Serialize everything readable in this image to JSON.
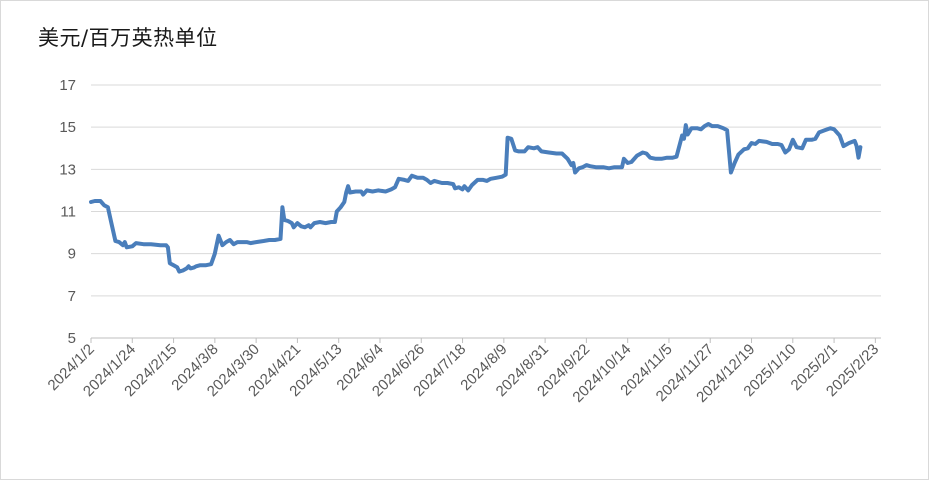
{
  "chart_data": {
    "type": "line",
    "unit_label": "美元/百万英热单位",
    "ylim": [
      5,
      17
    ],
    "y_ticks": [
      "5",
      "7",
      "9",
      "11",
      "13",
      "15",
      "17"
    ],
    "x_ticks": [
      "2024/1/2",
      "2024/1/24",
      "2024/2/15",
      "2024/3/8",
      "2024/3/30",
      "2024/4/21",
      "2024/5/13",
      "2024/6/4",
      "2024/6/26",
      "2024/7/18",
      "2024/8/9",
      "2024/8/31",
      "2024/9/22",
      "2024/10/14",
      "2024/11/5",
      "2024/11/27",
      "2024/12/19",
      "2025/1/10",
      "2025/2/1",
      "2025/2/23"
    ],
    "x_range": [
      "2024-01-02",
      "2025-02-26"
    ],
    "grid": true,
    "line_color": "#4a7ebb",
    "series": [
      {
        "points": [
          [
            "2024-01-02",
            11.45
          ],
          [
            "2024-01-04",
            11.5
          ],
          [
            "2024-01-07",
            11.5
          ],
          [
            "2024-01-09",
            11.3
          ],
          [
            "2024-01-11",
            11.2
          ],
          [
            "2024-01-13",
            10.4
          ],
          [
            "2024-01-15",
            9.6
          ],
          [
            "2024-01-17",
            9.55
          ],
          [
            "2024-01-19",
            9.4
          ],
          [
            "2024-01-20",
            9.55
          ],
          [
            "2024-01-21",
            9.3
          ],
          [
            "2024-01-24",
            9.35
          ],
          [
            "2024-01-26",
            9.5
          ],
          [
            "2024-01-30",
            9.45
          ],
          [
            "2024-02-03",
            9.45
          ],
          [
            "2024-02-08",
            9.4
          ],
          [
            "2024-02-11",
            9.4
          ],
          [
            "2024-02-12",
            9.3
          ],
          [
            "2024-02-13",
            8.55
          ],
          [
            "2024-02-15",
            8.45
          ],
          [
            "2024-02-17",
            8.35
          ],
          [
            "2024-02-18",
            8.15
          ],
          [
            "2024-02-20",
            8.2
          ],
          [
            "2024-02-22",
            8.3
          ],
          [
            "2024-02-23",
            8.4
          ],
          [
            "2024-02-24",
            8.3
          ],
          [
            "2024-02-26",
            8.35
          ],
          [
            "2024-02-27",
            8.4
          ],
          [
            "2024-02-29",
            8.45
          ],
          [
            "2024-03-03",
            8.45
          ],
          [
            "2024-03-06",
            8.5
          ],
          [
            "2024-03-08",
            9.0
          ],
          [
            "2024-03-10",
            9.85
          ],
          [
            "2024-03-12",
            9.4
          ],
          [
            "2024-03-14",
            9.55
          ],
          [
            "2024-03-16",
            9.65
          ],
          [
            "2024-03-18",
            9.45
          ],
          [
            "2024-03-20",
            9.55
          ],
          [
            "2024-03-25",
            9.55
          ],
          [
            "2024-03-27",
            9.5
          ],
          [
            "2024-03-30",
            9.55
          ],
          [
            "2024-04-03",
            9.6
          ],
          [
            "2024-04-06",
            9.65
          ],
          [
            "2024-04-09",
            9.65
          ],
          [
            "2024-04-12",
            9.7
          ],
          [
            "2024-04-13",
            11.2
          ],
          [
            "2024-04-14",
            10.6
          ],
          [
            "2024-04-16",
            10.55
          ],
          [
            "2024-04-18",
            10.45
          ],
          [
            "2024-04-19",
            10.25
          ],
          [
            "2024-04-21",
            10.45
          ],
          [
            "2024-04-23",
            10.3
          ],
          [
            "2024-04-25",
            10.25
          ],
          [
            "2024-04-27",
            10.35
          ],
          [
            "2024-04-28",
            10.25
          ],
          [
            "2024-04-30",
            10.45
          ],
          [
            "2024-05-03",
            10.5
          ],
          [
            "2024-05-06",
            10.45
          ],
          [
            "2024-05-09",
            10.5
          ],
          [
            "2024-05-11",
            10.5
          ],
          [
            "2024-05-12",
            11.0
          ],
          [
            "2024-05-14",
            11.2
          ],
          [
            "2024-05-16",
            11.45
          ],
          [
            "2024-05-17",
            11.9
          ],
          [
            "2024-05-18",
            12.2
          ],
          [
            "2024-05-19",
            11.9
          ],
          [
            "2024-05-22",
            11.95
          ],
          [
            "2024-05-25",
            11.95
          ],
          [
            "2024-05-26",
            11.8
          ],
          [
            "2024-05-28",
            12.0
          ],
          [
            "2024-05-31",
            11.95
          ],
          [
            "2024-06-03",
            12.0
          ],
          [
            "2024-06-07",
            11.95
          ],
          [
            "2024-06-10",
            12.05
          ],
          [
            "2024-06-12",
            12.15
          ],
          [
            "2024-06-14",
            12.55
          ],
          [
            "2024-06-17",
            12.5
          ],
          [
            "2024-06-19",
            12.45
          ],
          [
            "2024-06-21",
            12.7
          ],
          [
            "2024-06-24",
            12.6
          ],
          [
            "2024-06-27",
            12.6
          ],
          [
            "2024-06-29",
            12.5
          ],
          [
            "2024-07-01",
            12.35
          ],
          [
            "2024-07-03",
            12.45
          ],
          [
            "2024-07-07",
            12.35
          ],
          [
            "2024-07-10",
            12.35
          ],
          [
            "2024-07-13",
            12.3
          ],
          [
            "2024-07-14",
            12.1
          ],
          [
            "2024-07-16",
            12.15
          ],
          [
            "2024-07-18",
            12.05
          ],
          [
            "2024-07-19",
            12.2
          ],
          [
            "2024-07-21",
            12.0
          ],
          [
            "2024-07-23",
            12.25
          ],
          [
            "2024-07-26",
            12.5
          ],
          [
            "2024-07-29",
            12.5
          ],
          [
            "2024-07-31",
            12.45
          ],
          [
            "2024-08-02",
            12.55
          ],
          [
            "2024-08-05",
            12.6
          ],
          [
            "2024-08-08",
            12.65
          ],
          [
            "2024-08-10",
            12.75
          ],
          [
            "2024-08-11",
            14.5
          ],
          [
            "2024-08-13",
            14.45
          ],
          [
            "2024-08-15",
            13.9
          ],
          [
            "2024-08-17",
            13.85
          ],
          [
            "2024-08-20",
            13.85
          ],
          [
            "2024-08-22",
            14.05
          ],
          [
            "2024-08-25",
            14.0
          ],
          [
            "2024-08-27",
            14.05
          ],
          [
            "2024-08-29",
            13.85
          ],
          [
            "2024-09-02",
            13.8
          ],
          [
            "2024-09-06",
            13.75
          ],
          [
            "2024-09-09",
            13.75
          ],
          [
            "2024-09-12",
            13.5
          ],
          [
            "2024-09-14",
            13.2
          ],
          [
            "2024-09-15",
            13.3
          ],
          [
            "2024-09-16",
            12.85
          ],
          [
            "2024-09-18",
            13.05
          ],
          [
            "2024-09-20",
            13.1
          ],
          [
            "2024-09-22",
            13.2
          ],
          [
            "2024-09-24",
            13.15
          ],
          [
            "2024-09-27",
            13.1
          ],
          [
            "2024-10-01",
            13.1
          ],
          [
            "2024-10-04",
            13.05
          ],
          [
            "2024-10-07",
            13.1
          ],
          [
            "2024-10-11",
            13.1
          ],
          [
            "2024-10-12",
            13.5
          ],
          [
            "2024-10-14",
            13.3
          ],
          [
            "2024-10-16",
            13.35
          ],
          [
            "2024-10-19",
            13.65
          ],
          [
            "2024-10-22",
            13.8
          ],
          [
            "2024-10-24",
            13.75
          ],
          [
            "2024-10-26",
            13.55
          ],
          [
            "2024-10-29",
            13.5
          ],
          [
            "2024-11-01",
            13.5
          ],
          [
            "2024-11-04",
            13.55
          ],
          [
            "2024-11-07",
            13.55
          ],
          [
            "2024-11-09",
            13.6
          ],
          [
            "2024-11-12",
            14.6
          ],
          [
            "2024-11-13",
            14.45
          ],
          [
            "2024-11-14",
            15.1
          ],
          [
            "2024-11-15",
            14.65
          ],
          [
            "2024-11-17",
            14.95
          ],
          [
            "2024-11-20",
            14.95
          ],
          [
            "2024-11-22",
            14.9
          ],
          [
            "2024-11-24",
            15.05
          ],
          [
            "2024-11-26",
            15.15
          ],
          [
            "2024-11-28",
            15.05
          ],
          [
            "2024-12-01",
            15.05
          ],
          [
            "2024-12-04",
            14.95
          ],
          [
            "2024-12-06",
            14.85
          ],
          [
            "2024-12-08",
            12.85
          ],
          [
            "2024-12-10",
            13.3
          ],
          [
            "2024-12-12",
            13.7
          ],
          [
            "2024-12-15",
            13.95
          ],
          [
            "2024-12-17",
            14.0
          ],
          [
            "2024-12-19",
            14.25
          ],
          [
            "2024-12-21",
            14.2
          ],
          [
            "2024-12-23",
            14.35
          ],
          [
            "2024-12-27",
            14.3
          ],
          [
            "2024-12-30",
            14.2
          ],
          [
            "2025-01-02",
            14.2
          ],
          [
            "2025-01-04",
            14.15
          ],
          [
            "2025-01-06",
            13.8
          ],
          [
            "2025-01-08",
            13.95
          ],
          [
            "2025-01-10",
            14.4
          ],
          [
            "2025-01-12",
            14.05
          ],
          [
            "2025-01-15",
            14.0
          ],
          [
            "2025-01-17",
            14.4
          ],
          [
            "2025-01-20",
            14.4
          ],
          [
            "2025-01-22",
            14.45
          ],
          [
            "2025-01-24",
            14.75
          ],
          [
            "2025-01-27",
            14.85
          ],
          [
            "2025-01-30",
            14.95
          ],
          [
            "2025-02-01",
            14.9
          ],
          [
            "2025-02-04",
            14.6
          ],
          [
            "2025-02-06",
            14.1
          ],
          [
            "2025-02-09",
            14.25
          ],
          [
            "2025-02-12",
            14.35
          ],
          [
            "2025-02-13",
            14.1
          ],
          [
            "2025-02-14",
            13.55
          ],
          [
            "2025-02-15",
            14.05
          ]
        ]
      }
    ]
  }
}
